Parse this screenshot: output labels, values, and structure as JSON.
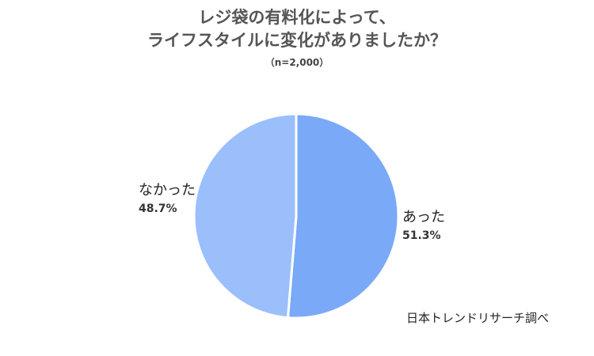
{
  "chart_data": {
    "type": "pie",
    "title_lines": [
      "レジ袋の有料化によって、",
      "ライフスタイルに変化がありましたか？"
    ],
    "subtitle": "（n=2,000）",
    "slices": [
      {
        "label": "あった",
        "value": 51.3,
        "value_label": "51.3%",
        "color": "#7aa9f8"
      },
      {
        "label": "なかった",
        "value": 48.7,
        "value_label": "48.7%",
        "color": "#9bbffa"
      }
    ],
    "start": "12 o'clock",
    "direction": "clockwise"
  },
  "source": "日本トレンドリサーチ調べ"
}
